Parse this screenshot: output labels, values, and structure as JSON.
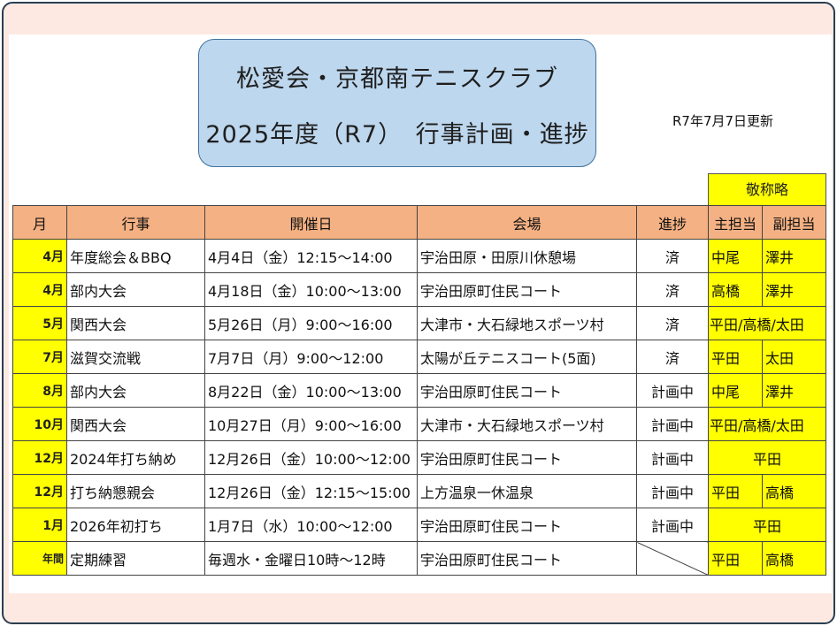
{
  "header": {
    "title_line1": "松愛会・京都南テニスクラブ",
    "title_line2": "2025年度（R7）　行事計画・進捗",
    "updated": "R7年7月7日更新",
    "honorifics_note": "敬称略"
  },
  "table": {
    "columns": [
      "月",
      "行事",
      "開催日",
      "会場",
      "進捗",
      "主担当",
      "副担当"
    ],
    "rows": [
      {
        "month": "4月",
        "event": "年度総会＆BBQ",
        "date": "4月4日（金）12:15～14:00",
        "venue": "宇治田原・田原川休憩場",
        "status": "済",
        "main": "中尾",
        "sub": "澤井"
      },
      {
        "month": "4月",
        "event": "部内大会",
        "date": "4月18日（金）10:00～13:00",
        "venue": "宇治田原町住民コート",
        "status": "済",
        "main": "高橋",
        "sub": "澤井"
      },
      {
        "month": "5月",
        "event": "関西大会",
        "date": "5月26日（月）9:00～16:00",
        "venue": "大津市・大石緑地スポーツ村",
        "status": "済",
        "combined": "平田/高橋/太田"
      },
      {
        "month": "7月",
        "event": "滋賀交流戦",
        "date": "7月7日（月）9:00～12:00",
        "venue": "太陽が丘テニスコート(5面)",
        "status": "済",
        "main": "平田",
        "sub": "太田"
      },
      {
        "month": "8月",
        "event": "部内大会",
        "date": "8月22日（金）10:00～13:00",
        "venue": "宇治田原町住民コート",
        "status": "計画中",
        "main": "中尾",
        "sub": "澤井"
      },
      {
        "month": "10月",
        "event": "関西大会",
        "date": "10月27日（月）9:00～16:00",
        "venue": "大津市・大石緑地スポーツ村",
        "status": "計画中",
        "combined": "平田/高橋/太田"
      },
      {
        "month": "12月",
        "event": "2024年打ち納め",
        "date": "12月26日（金）10:00～12:00",
        "venue": "宇治田原町住民コート",
        "status": "計画中",
        "merged": "平田"
      },
      {
        "month": "12月",
        "event": "打ち納懇親会",
        "date": "12月26日（金）12:15～15:00",
        "venue": "上方温泉一休温泉",
        "status": "計画中",
        "main": "平田",
        "sub": "高橋"
      },
      {
        "month": "1月",
        "event": "2026年初打ち",
        "date": "1月7日（水）10:00～12:00",
        "venue": "宇治田原町住民コート",
        "status": "計画中",
        "merged": "平田"
      },
      {
        "month": "年間",
        "event": "定期練習",
        "date": "毎週水・金曜日10時～12時",
        "venue": "宇治田原町住民コート",
        "status": "",
        "main": "平田",
        "sub": "高橋"
      }
    ]
  },
  "colors": {
    "header_fill": "#f4b183",
    "highlight": "#ffff00",
    "title_box": "#bdd7ee",
    "frame_bg": "#fde9e2"
  }
}
